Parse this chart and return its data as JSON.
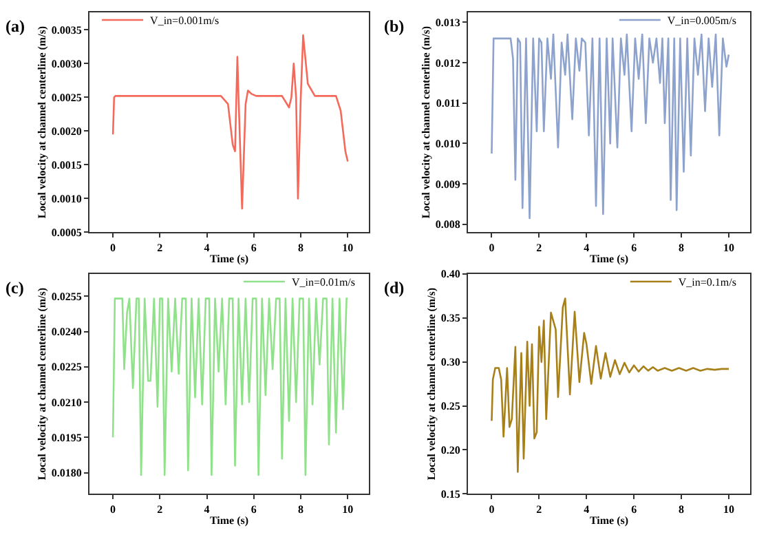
{
  "chart_data": [
    {
      "type": "line",
      "title": "(a)",
      "xlabel": "Time (s)",
      "ylabel": "Local velocity at channel centerline (m/s)",
      "legend": "top left",
      "grid": false,
      "xlim": [
        -1,
        10.9
      ],
      "xticks": [
        0,
        2,
        4,
        6,
        8,
        10
      ],
      "ylim": [
        0.0005,
        0.00376
      ],
      "yticks": [
        0.0005,
        {
          "value": 0.001,
          "label": "0.0010"
        },
        0.0015,
        {
          "value": 0.002,
          "label": "0.0020"
        },
        0.0025,
        {
          "value": 0.003,
          "label": "0.0030"
        },
        0.0035
      ],
      "series": [
        {
          "name": "V_in=0.001m/s",
          "color": "#f4695a",
          "x": [
            0,
            0.05,
            0.1,
            4.6,
            4.9,
            5.1,
            5.2,
            5.3,
            5.35,
            5.5,
            5.65,
            5.75,
            5.9,
            6.1,
            7.2,
            7.5,
            7.6,
            7.7,
            7.8,
            7.88,
            8.0,
            8.1,
            8.3,
            8.6,
            9.5,
            9.7,
            9.9,
            10
          ],
          "values": [
            0.00195,
            0.0025,
            0.00252,
            0.00252,
            0.0024,
            0.0018,
            0.0017,
            0.0031,
            0.0025,
            0.00085,
            0.0024,
            0.0026,
            0.00255,
            0.00252,
            0.00252,
            0.00235,
            0.0025,
            0.003,
            0.0025,
            0.001,
            0.0025,
            0.00342,
            0.0027,
            0.00252,
            0.00252,
            0.0023,
            0.0017,
            0.00155
          ]
        }
      ]
    },
    {
      "type": "line",
      "title": "(b)",
      "xlabel": "Time (s)",
      "ylabel": "Local velocity at channel centerline (m/s)",
      "legend": "top right",
      "grid": false,
      "xlim": [
        -1,
        10.9
      ],
      "xticks": [
        0,
        2,
        4,
        6,
        8,
        10
      ],
      "ylim": [
        0.0078,
        0.01325
      ],
      "yticks": [
        0.008,
        0.009,
        {
          "value": 0.01,
          "label": "0.010"
        },
        0.011,
        0.012,
        0.013
      ],
      "series": [
        {
          "name": "V_in=0.005m/s",
          "color": "#8da2cc",
          "x": [
            0,
            0.08,
            0.8,
            0.9,
            1.0,
            1.1,
            1.2,
            1.3,
            1.45,
            1.6,
            1.75,
            1.9,
            2.0,
            2.1,
            2.2,
            2.35,
            2.5,
            2.6,
            2.8,
            2.95,
            3.1,
            3.2,
            3.4,
            3.55,
            3.7,
            3.8,
            3.95,
            4.1,
            4.25,
            4.4,
            4.55,
            4.7,
            4.85,
            5.0,
            5.1,
            5.3,
            5.45,
            5.6,
            5.7,
            5.9,
            6.05,
            6.2,
            6.35,
            6.5,
            6.65,
            6.8,
            6.95,
            7.1,
            7.2,
            7.3,
            7.45,
            7.55,
            7.7,
            7.8,
            7.95,
            8.1,
            8.25,
            8.4,
            8.55,
            8.7,
            8.85,
            9.0,
            9.15,
            9.3,
            9.45,
            9.6,
            9.75,
            9.9,
            10.0
          ],
          "values": [
            0.00975,
            0.0126,
            0.0126,
            0.0121,
            0.0091,
            0.0126,
            0.0125,
            0.0084,
            0.0126,
            0.00815,
            0.0126,
            0.0103,
            0.0126,
            0.0125,
            0.0103,
            0.0126,
            0.0116,
            0.0127,
            0.0099,
            0.0125,
            0.0117,
            0.0127,
            0.0106,
            0.0126,
            0.0118,
            0.0126,
            0.0125,
            0.0102,
            0.0126,
            0.00845,
            0.0126,
            0.00825,
            0.0126,
            0.01,
            0.0126,
            0.0099,
            0.0126,
            0.0117,
            0.0127,
            0.0103,
            0.0126,
            0.0116,
            0.0127,
            0.0105,
            0.0126,
            0.012,
            0.0126,
            0.0115,
            0.0126,
            0.0105,
            0.0126,
            0.0086,
            0.0126,
            0.00835,
            0.0126,
            0.0093,
            0.0126,
            0.0097,
            0.0126,
            0.0117,
            0.0127,
            0.0108,
            0.0126,
            0.0114,
            0.0127,
            0.0102,
            0.0126,
            0.0119,
            0.0122
          ]
        }
      ]
    },
    {
      "type": "line",
      "title": "(c)",
      "xlabel": "Time (s)",
      "ylabel": "Local velocity at channel centerline (m/s)",
      "legend": "top right",
      "grid": false,
      "xlim": [
        -1,
        10.9
      ],
      "xticks": [
        0,
        2,
        4,
        6,
        8,
        10
      ],
      "ylim": [
        0.0171,
        0.02645
      ],
      "yticks": [
        {
          "value": 0.018,
          "label": "0.0180"
        },
        0.0195,
        {
          "value": 0.021,
          "label": "0.0210"
        },
        0.0225,
        {
          "value": 0.024,
          "label": "0.0240"
        },
        0.0255
      ],
      "series": [
        {
          "name": "V_in=0.01m/s",
          "color": "#90e28a",
          "x": [
            0,
            0.08,
            0.4,
            0.48,
            0.6,
            0.7,
            0.85,
            1.0,
            1.1,
            1.2,
            1.35,
            1.5,
            1.6,
            1.75,
            1.9,
            2.0,
            2.1,
            2.2,
            2.35,
            2.5,
            2.65,
            2.8,
            2.95,
            3.1,
            3.2,
            3.35,
            3.5,
            3.65,
            3.8,
            3.95,
            4.1,
            4.2,
            4.35,
            4.5,
            4.65,
            4.8,
            4.95,
            5.1,
            5.2,
            5.35,
            5.5,
            5.65,
            5.8,
            5.95,
            6.1,
            6.2,
            6.35,
            6.5,
            6.65,
            6.8,
            6.95,
            7.1,
            7.2,
            7.35,
            7.5,
            7.65,
            7.8,
            7.95,
            8.1,
            8.2,
            8.35,
            8.5,
            8.65,
            8.8,
            8.95,
            9.1,
            9.2,
            9.35,
            9.5,
            9.65,
            9.8,
            9.95,
            10.0
          ],
          "values": [
            0.0195,
            0.0254,
            0.0254,
            0.0224,
            0.0248,
            0.0254,
            0.0216,
            0.0254,
            0.0254,
            0.0179,
            0.0254,
            0.0219,
            0.0219,
            0.0254,
            0.0208,
            0.0254,
            0.0254,
            0.0179,
            0.0254,
            0.0223,
            0.0254,
            0.0222,
            0.0254,
            0.0254,
            0.0181,
            0.0254,
            0.0212,
            0.0254,
            0.0209,
            0.0254,
            0.0254,
            0.0179,
            0.0254,
            0.0223,
            0.0254,
            0.0209,
            0.0254,
            0.0254,
            0.0183,
            0.0254,
            0.0209,
            0.0254,
            0.021,
            0.0254,
            0.0254,
            0.0179,
            0.0254,
            0.0213,
            0.0254,
            0.0224,
            0.0254,
            0.0254,
            0.0186,
            0.0254,
            0.0202,
            0.0254,
            0.021,
            0.0254,
            0.0254,
            0.0179,
            0.0254,
            0.0209,
            0.0254,
            0.0226,
            0.0254,
            0.0254,
            0.0192,
            0.0254,
            0.0197,
            0.0254,
            0.0207,
            0.0254,
            0.0254
          ]
        }
      ]
    },
    {
      "type": "line",
      "title": "(d)",
      "xlabel": "Time (s)",
      "ylabel": "Local velocity at channel centerline (m/s)",
      "legend": "top right",
      "grid": false,
      "xlim": [
        -1,
        10.9
      ],
      "xticks": [
        0,
        2,
        4,
        6,
        8,
        10
      ],
      "ylim": [
        0.15,
        0.4
      ],
      "yticks": [
        0.15,
        {
          "value": 0.2,
          "label": "0.20"
        },
        0.25,
        {
          "value": 0.3,
          "label": "0.30"
        },
        0.35,
        {
          "value": 0.4,
          "label": "0.40"
        }
      ],
      "series": [
        {
          "name": "V_in=0.1m/s",
          "color": "#a8801a",
          "x": [
            0,
            0.05,
            0.15,
            0.3,
            0.4,
            0.5,
            0.65,
            0.75,
            0.85,
            1.0,
            1.1,
            1.25,
            1.35,
            1.5,
            1.6,
            1.7,
            1.8,
            1.9,
            2.0,
            2.1,
            2.2,
            2.3,
            2.5,
            2.7,
            2.8,
            3.0,
            3.1,
            3.3,
            3.5,
            3.7,
            3.9,
            4.0,
            4.2,
            4.4,
            4.6,
            4.8,
            5.0,
            5.2,
            5.4,
            5.6,
            5.8,
            6.0,
            6.2,
            6.4,
            6.6,
            6.8,
            7.0,
            7.3,
            7.6,
            7.9,
            8.2,
            8.5,
            8.8,
            9.1,
            9.4,
            9.7,
            10
          ],
          "values": [
            0.233,
            0.28,
            0.293,
            0.293,
            0.28,
            0.215,
            0.293,
            0.226,
            0.235,
            0.317,
            0.175,
            0.31,
            0.19,
            0.323,
            0.25,
            0.32,
            0.213,
            0.22,
            0.34,
            0.3,
            0.347,
            0.235,
            0.356,
            0.337,
            0.26,
            0.362,
            0.372,
            0.263,
            0.357,
            0.277,
            0.333,
            0.32,
            0.275,
            0.318,
            0.281,
            0.31,
            0.283,
            0.302,
            0.286,
            0.299,
            0.288,
            0.296,
            0.289,
            0.295,
            0.29,
            0.294,
            0.29,
            0.293,
            0.29,
            0.293,
            0.29,
            0.293,
            0.29,
            0.292,
            0.291,
            0.292,
            0.292
          ]
        }
      ]
    }
  ]
}
